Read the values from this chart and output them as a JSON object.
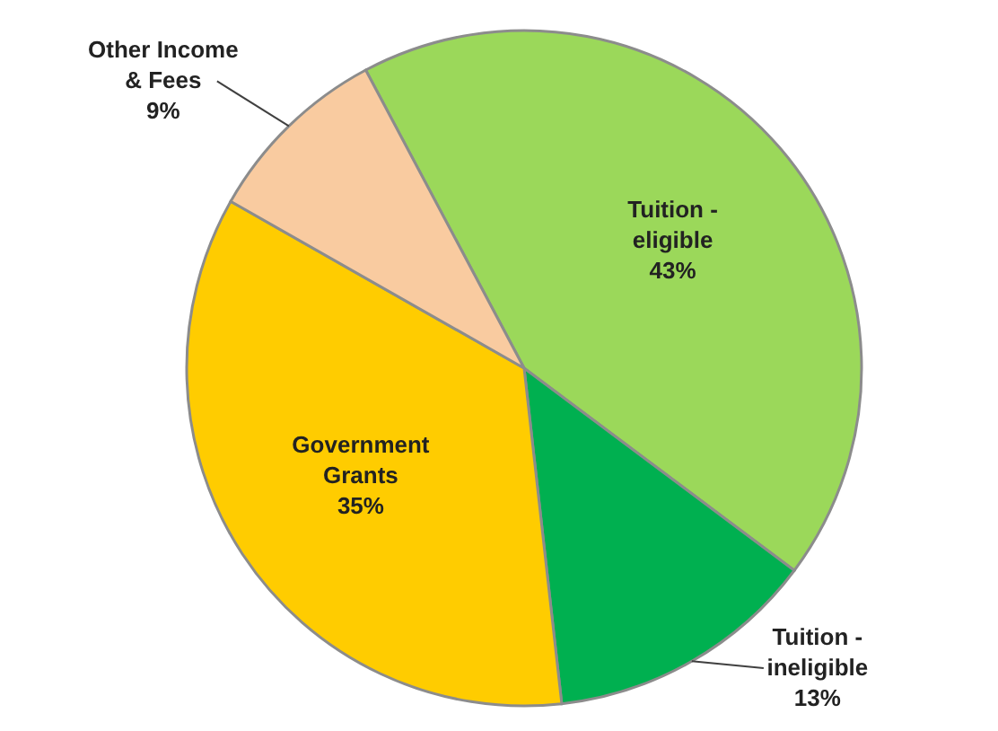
{
  "chart_data": {
    "type": "pie",
    "categories": [
      "Tuition -\neligible",
      "Tuition -\nineligible",
      "Government\nGrants",
      "Other Income\n& Fees"
    ],
    "values": [
      43,
      13,
      35,
      9
    ],
    "value_labels": [
      "43%",
      "13%",
      "35%",
      "9%"
    ],
    "colors": [
      "#9bd85a",
      "#00b050",
      "#ffcc00",
      "#f9cba0"
    ]
  }
}
